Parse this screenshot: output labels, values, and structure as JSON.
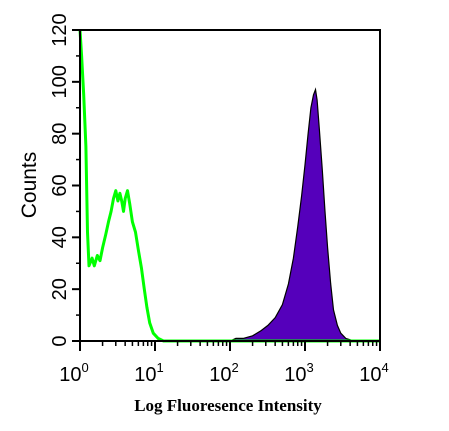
{
  "chart_data": {
    "type": "area",
    "xlabel": "Log Fluoresence Intensity",
    "ylabel": "Counts",
    "x_scale": "log",
    "xlim": [
      1,
      10000
    ],
    "ylim": [
      0,
      120
    ],
    "x_ticks": [
      {
        "base": "10",
        "exp": "0",
        "value": 1
      },
      {
        "base": "10",
        "exp": "1",
        "value": 10
      },
      {
        "base": "10",
        "exp": "2",
        "value": 100
      },
      {
        "base": "10",
        "exp": "3",
        "value": 1000
      },
      {
        "base": "10",
        "exp": "4",
        "value": 10000
      }
    ],
    "y_ticks": [
      "0",
      "20",
      "40",
      "60",
      "80",
      "100",
      "120"
    ],
    "series": [
      {
        "style": "outline",
        "color": "#00ff00",
        "points": [
          [
            1,
            120
          ],
          [
            1.05,
            110
          ],
          [
            1.12,
            95
          ],
          [
            1.2,
            75
          ],
          [
            1.26,
            42
          ],
          [
            1.32,
            29
          ],
          [
            1.45,
            32
          ],
          [
            1.55,
            29
          ],
          [
            1.7,
            33
          ],
          [
            1.85,
            31
          ],
          [
            2.0,
            36
          ],
          [
            2.2,
            41
          ],
          [
            2.4,
            46
          ],
          [
            2.6,
            50
          ],
          [
            2.8,
            55
          ],
          [
            3.0,
            58
          ],
          [
            3.2,
            54
          ],
          [
            3.4,
            57
          ],
          [
            3.6,
            54
          ],
          [
            3.8,
            50
          ],
          [
            4.0,
            55
          ],
          [
            4.3,
            58
          ],
          [
            4.6,
            53
          ],
          [
            5.0,
            46
          ],
          [
            5.5,
            42
          ],
          [
            6.0,
            35
          ],
          [
            6.6,
            28
          ],
          [
            7.2,
            20
          ],
          [
            7.8,
            13
          ],
          [
            8.5,
            7
          ],
          [
            9.5,
            3
          ],
          [
            11,
            1
          ],
          [
            13,
            0
          ],
          [
            20,
            0
          ],
          [
            100,
            0
          ],
          [
            1000,
            0
          ],
          [
            10000,
            0
          ]
        ]
      },
      {
        "style": "filled",
        "color": "#5500bb",
        "points": [
          [
            1,
            0
          ],
          [
            100,
            0
          ],
          [
            120,
            1
          ],
          [
            150,
            1
          ],
          [
            200,
            2
          ],
          [
            260,
            4
          ],
          [
            320,
            6
          ],
          [
            400,
            9
          ],
          [
            500,
            14
          ],
          [
            600,
            22
          ],
          [
            700,
            32
          ],
          [
            800,
            44
          ],
          [
            900,
            56
          ],
          [
            1000,
            68
          ],
          [
            1100,
            80
          ],
          [
            1200,
            90
          ],
          [
            1300,
            95
          ],
          [
            1380,
            97
          ],
          [
            1450,
            93
          ],
          [
            1550,
            82
          ],
          [
            1700,
            66
          ],
          [
            1850,
            50
          ],
          [
            2000,
            36
          ],
          [
            2200,
            22
          ],
          [
            2400,
            12
          ],
          [
            2700,
            6
          ],
          [
            3000,
            3
          ],
          [
            3500,
            1
          ],
          [
            4500,
            0
          ],
          [
            10000,
            0
          ]
        ]
      }
    ]
  }
}
